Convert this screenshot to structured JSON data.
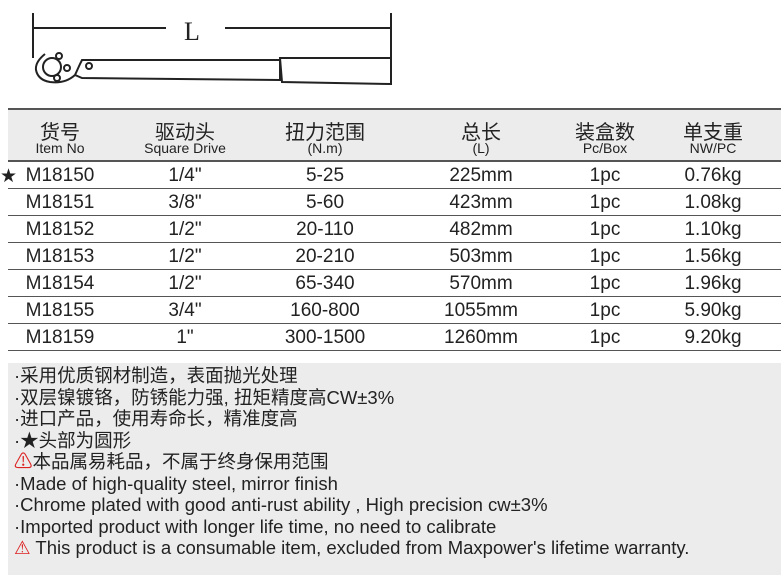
{
  "diagram": {
    "dimension_label": "L"
  },
  "table": {
    "headers": [
      {
        "cn": "货号",
        "en": "Item No"
      },
      {
        "cn": "驱动头",
        "en": "Square Drive"
      },
      {
        "cn": "扭力范围",
        "en": "(N.m)"
      },
      {
        "cn": "总长",
        "en": "(L)"
      },
      {
        "cn": "装盒数",
        "en": "Pc/Box"
      },
      {
        "cn": "单支重",
        "en": "NW/PC"
      }
    ],
    "star_mark": "★",
    "rows": [
      [
        "M18150",
        "1/4\"",
        "5-25",
        "225mm",
        "1pc",
        "0.76kg"
      ],
      [
        "M18151",
        "3/8\"",
        "5-60",
        "423mm",
        "1pc",
        "1.08kg"
      ],
      [
        "M18152",
        "1/2\"",
        "20-110",
        "482mm",
        "1pc",
        "1.10kg"
      ],
      [
        "M18153",
        "1/2\"",
        "20-210",
        "503mm",
        "1pc",
        "1.56kg"
      ],
      [
        "M18154",
        "1/2\"",
        "65-340",
        "570mm",
        "1pc",
        "1.96kg"
      ],
      [
        "M18155",
        "3/4\"",
        "160-800",
        "1055mm",
        "1pc",
        "5.90kg"
      ],
      [
        "M18159",
        "1\"",
        "300-1500",
        "1260mm",
        "1pc",
        "9.20kg"
      ]
    ]
  },
  "notes": [
    {
      "prefix": "·",
      "text": "采用优质钢材制造，表面抛光处理"
    },
    {
      "prefix": "·",
      "text": "双层镍镀铬，防锈能力强, 扭矩精度高CW±3%"
    },
    {
      "prefix": "·",
      "text": "进口产品，使用寿命长，精准度高"
    },
    {
      "prefix": "·",
      "text": "★头部为圆形"
    },
    {
      "prefix": "⚠",
      "text": "本品属易耗品，不属于终身保用范围"
    },
    {
      "prefix": "·",
      "text": "Made of high-quality steel, mirror finish"
    },
    {
      "prefix": "·",
      "text": "Chrome plated with good anti-rust ability , High precision cw±3%"
    },
    {
      "prefix": "·",
      "text": "Imported product with longer life time, no need to calibrate"
    },
    {
      "prefix": "⚠",
      "text": " This product is a consumable item, excluded from Maxpower's lifetime warranty."
    }
  ]
}
